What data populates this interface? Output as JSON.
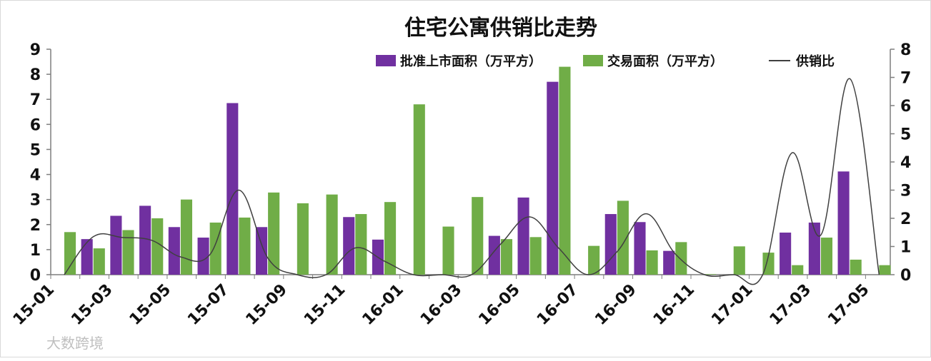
{
  "chart_data": {
    "type": "bar",
    "title": "住宅公寓供销比走势",
    "categories": [
      "15-01",
      "15-02",
      "15-03",
      "15-04",
      "15-05",
      "15-06",
      "15-07",
      "15-08",
      "15-09",
      "15-10",
      "15-11",
      "15-12",
      "16-01",
      "16-02",
      "16-03",
      "16-04",
      "16-05",
      "16-06",
      "16-07",
      "16-08",
      "16-09",
      "16-10",
      "16-11",
      "16-12",
      "17-01",
      "17-02",
      "17-03",
      "17-04",
      "17-05"
    ],
    "xtick_labels": [
      "15-01",
      "15-03",
      "15-05",
      "15-07",
      "15-09",
      "15-11",
      "16-01",
      "16-03",
      "16-05",
      "16-07",
      "16-09",
      "16-11",
      "17-01",
      "17-03",
      "17-05"
    ],
    "series": [
      {
        "name": "批准上市面积（万平方）",
        "type": "bar",
        "axis": "left",
        "color": "#7030a0",
        "values": [
          0,
          1.42,
          2.35,
          2.75,
          1.9,
          1.48,
          6.85,
          1.9,
          0,
          0,
          2.3,
          1.4,
          0,
          0,
          0,
          1.55,
          3.08,
          7.7,
          0,
          2.42,
          2.1,
          0.95,
          0,
          0,
          0,
          1.68,
          2.08,
          4.12,
          0
        ]
      },
      {
        "name": "交易面积（万平方）",
        "type": "bar",
        "axis": "left",
        "color": "#70ad47",
        "values": [
          1.7,
          1.05,
          1.78,
          2.25,
          3.0,
          2.08,
          2.28,
          3.28,
          2.85,
          3.2,
          2.42,
          2.9,
          6.8,
          1.92,
          3.1,
          1.42,
          1.5,
          8.3,
          1.15,
          2.95,
          0.97,
          1.3,
          0.02,
          1.13,
          0.88,
          0.38,
          1.48,
          0.6,
          0.38
        ]
      },
      {
        "name": "供销比",
        "type": "line",
        "axis": "right",
        "color": "#404040",
        "values": [
          0,
          1.35,
          1.32,
          1.22,
          0.63,
          0.71,
          3.0,
          0.58,
          0,
          0,
          0.95,
          0.48,
          0,
          0,
          0,
          1.09,
          2.05,
          0.93,
          0,
          0.82,
          2.16,
          0.73,
          0,
          0,
          0,
          4.32,
          1.41,
          6.95,
          0
        ]
      }
    ],
    "y_left": {
      "min": 0,
      "max": 9,
      "ticks": [
        0,
        1,
        2,
        3,
        4,
        5,
        6,
        7,
        8,
        9
      ]
    },
    "y_right": {
      "min": 0,
      "max": 8,
      "ticks": [
        0,
        1,
        2,
        3,
        4,
        5,
        6,
        7,
        8
      ]
    },
    "legend_position": "top-right",
    "grid": false
  },
  "watermark": "大数跨境"
}
